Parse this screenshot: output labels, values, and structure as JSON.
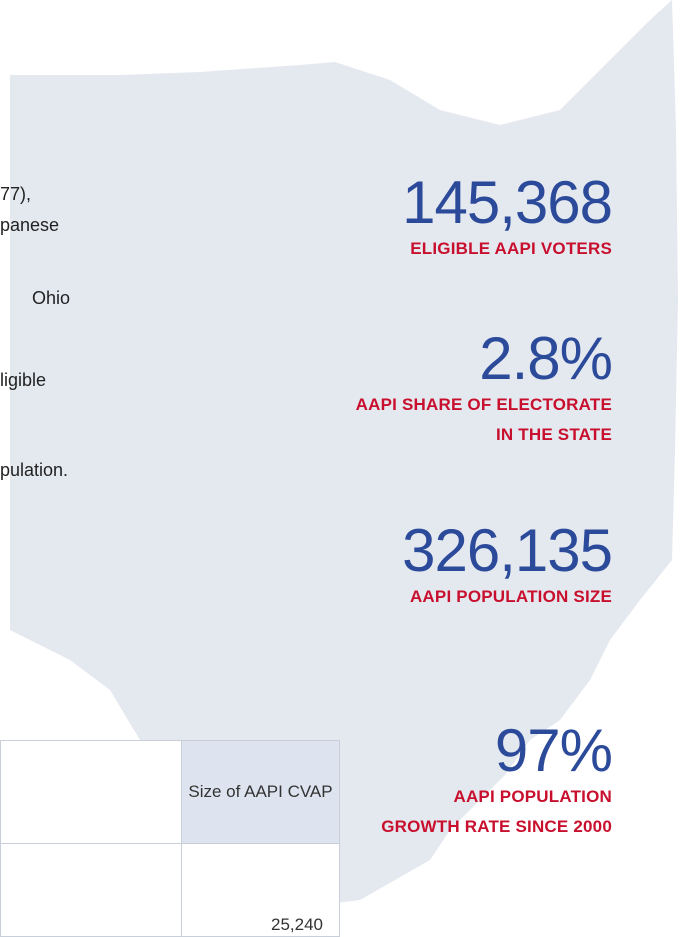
{
  "body_text": {
    "fragments": [
      "77),",
      "panese",
      "Ohio",
      "ligible",
      "pulation."
    ]
  },
  "stats": [
    {
      "value": "145,368",
      "label_lines": [
        "ELIGIBLE AAPI VOTERS"
      ]
    },
    {
      "value": "2.8%",
      "label_lines": [
        "AAPI SHARE OF ELECTORATE",
        "IN THE STATE"
      ]
    },
    {
      "value": "326,135",
      "label_lines": [
        "AAPI POPULATION SIZE"
      ]
    },
    {
      "value": "97%",
      "label_lines": [
        "AAPI POPULATION",
        "GROWTH RATE SINCE 2000"
      ]
    }
  ],
  "table": {
    "header": [
      "Size of AAPI CVAP"
    ],
    "rows": [
      [
        "25,240"
      ]
    ]
  }
}
